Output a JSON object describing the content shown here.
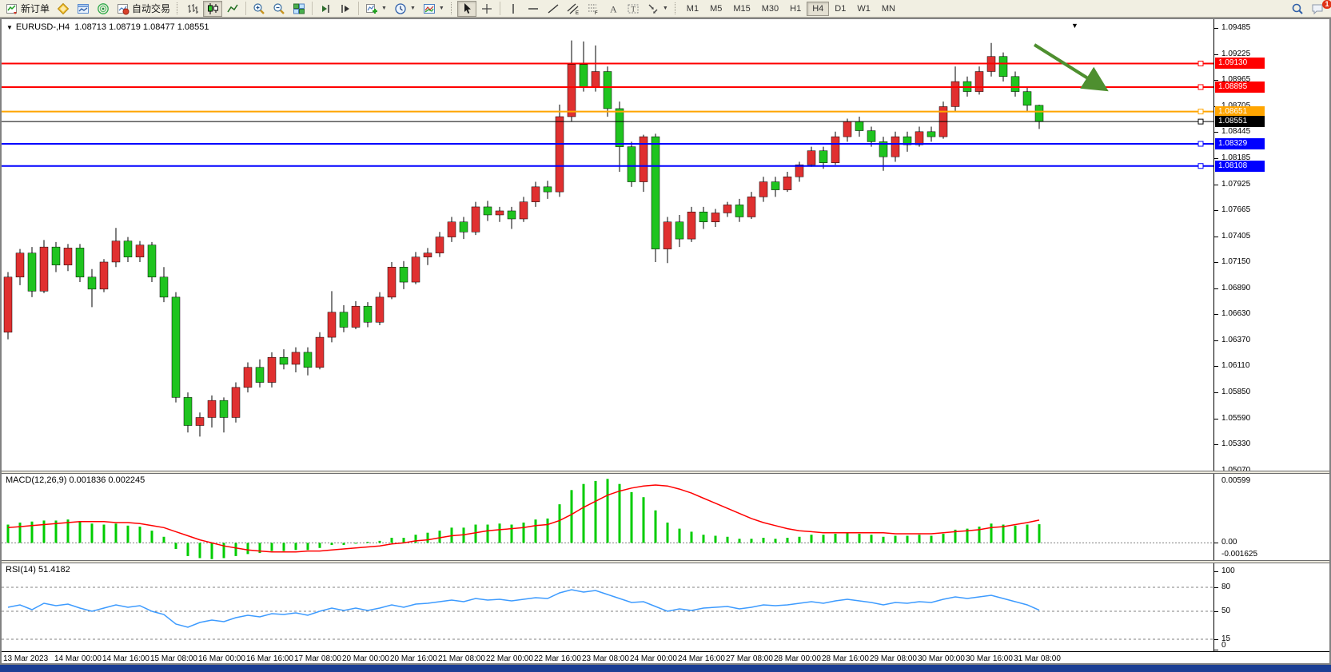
{
  "toolbar": {
    "new_order": "新订单",
    "autotrading": "自动交易",
    "timeframes": [
      "M1",
      "M5",
      "M15",
      "M30",
      "H1",
      "H4",
      "D1",
      "W1",
      "MN"
    ],
    "active_timeframe": "H4",
    "notification_badge": "1"
  },
  "chart": {
    "title": "EURUSD-,H4",
    "ohlc": "1.08713 1.08719 1.08477 1.08551",
    "macd_label": "MACD(12,26,9) 0.001836 0.002245",
    "rsi_label": "RSI(14) 51.4182",
    "shift_marker": "▼",
    "dropdown_glyph": "▼"
  },
  "chart_data": {
    "type": "candlestick",
    "symbol": "EURUSD-",
    "timeframe": "H4",
    "colors": {
      "up": "#e03030",
      "down": "#1fc41f",
      "wick": "#000000",
      "macd_hist": "#00cc00",
      "macd_signal": "#ff0000",
      "rsi": "#3d9bff",
      "arrow": "#4e8f2f"
    },
    "price_range": {
      "top": 1.09572,
      "bottom": 1.0507
    },
    "price_ticks": [
      "1.09485",
      "1.09225",
      "1.08965",
      "1.08705",
      "1.08445",
      "1.08185",
      "1.07925",
      "1.07665",
      "1.07405",
      "1.07150",
      "1.06890",
      "1.06630",
      "1.06370",
      "1.06110",
      "1.05850",
      "1.05590",
      "1.05330",
      "1.05070"
    ],
    "hlines": [
      {
        "price": 1.0913,
        "label": "1.09130",
        "color": "#ff0000",
        "w": 2
      },
      {
        "price": 1.08895,
        "label": "1.08895",
        "color": "#ff0000",
        "w": 2
      },
      {
        "price": 1.08651,
        "label": "1.08651",
        "color": "#ffa500",
        "w": 2
      },
      {
        "price": 1.08551,
        "label": "1.08551",
        "color": "#000000",
        "w": 1
      },
      {
        "price": 1.08329,
        "label": "1.08329",
        "color": "#0000ff",
        "w": 2
      },
      {
        "price": 1.08108,
        "label": "1.08108",
        "color": "#0000ff",
        "w": 2
      }
    ],
    "candles": [
      [
        1.0645,
        1.0705,
        1.0638,
        1.07
      ],
      [
        1.07,
        1.0728,
        1.0692,
        1.0724
      ],
      [
        1.0724,
        1.073,
        1.068,
        1.0686
      ],
      [
        1.0686,
        1.0737,
        1.0684,
        1.073
      ],
      [
        1.073,
        1.0735,
        1.0705,
        1.0712
      ],
      [
        1.0712,
        1.0733,
        1.0706,
        1.0729
      ],
      [
        1.0729,
        1.0733,
        1.0695,
        1.07
      ],
      [
        1.07,
        1.0708,
        1.067,
        1.0688
      ],
      [
        1.0688,
        1.0718,
        1.0685,
        1.0715
      ],
      [
        1.0715,
        1.0749,
        1.071,
        1.0736
      ],
      [
        1.0736,
        1.074,
        1.0715,
        1.072
      ],
      [
        1.072,
        1.0736,
        1.0715,
        1.0732
      ],
      [
        1.0732,
        1.0735,
        1.0695,
        1.07
      ],
      [
        1.07,
        1.071,
        1.0675,
        1.068
      ],
      [
        1.068,
        1.0685,
        1.0575,
        1.058
      ],
      [
        1.058,
        1.0585,
        1.0545,
        1.0552
      ],
      [
        1.0552,
        1.0565,
        1.0541,
        1.056
      ],
      [
        1.056,
        1.0582,
        1.055,
        1.0577
      ],
      [
        1.0577,
        1.058,
        1.0545,
        1.056
      ],
      [
        1.056,
        1.0595,
        1.0555,
        1.059
      ],
      [
        1.059,
        1.0615,
        1.0585,
        1.061
      ],
      [
        1.061,
        1.0618,
        1.059,
        1.0595
      ],
      [
        1.0595,
        1.0625,
        1.059,
        1.062
      ],
      [
        1.062,
        1.0628,
        1.0608,
        1.0613
      ],
      [
        1.0613,
        1.063,
        1.0605,
        1.0625
      ],
      [
        1.0625,
        1.063,
        1.0602,
        1.061
      ],
      [
        1.061,
        1.0645,
        1.0608,
        1.064
      ],
      [
        1.064,
        1.0686,
        1.0635,
        1.0665
      ],
      [
        1.0665,
        1.0672,
        1.0645,
        1.065
      ],
      [
        1.065,
        1.0676,
        1.0648,
        1.0671
      ],
      [
        1.0671,
        1.0675,
        1.065,
        1.0655
      ],
      [
        1.0655,
        1.0685,
        1.0652,
        1.068
      ],
      [
        1.068,
        1.0715,
        1.0678,
        1.071
      ],
      [
        1.071,
        1.0716,
        1.0688,
        1.0695
      ],
      [
        1.0695,
        1.0725,
        1.0693,
        1.072
      ],
      [
        1.072,
        1.0729,
        1.0712,
        1.0724
      ],
      [
        1.0724,
        1.0745,
        1.072,
        1.074
      ],
      [
        1.074,
        1.076,
        1.0735,
        1.0755
      ],
      [
        1.0755,
        1.076,
        1.0738,
        1.0745
      ],
      [
        1.0745,
        1.0775,
        1.0742,
        1.077
      ],
      [
        1.077,
        1.0776,
        1.0756,
        1.0762
      ],
      [
        1.0762,
        1.077,
        1.0755,
        1.0766
      ],
      [
        1.0766,
        1.077,
        1.0748,
        1.0758
      ],
      [
        1.0758,
        1.078,
        1.0755,
        1.0775
      ],
      [
        1.0775,
        1.0795,
        1.077,
        1.079
      ],
      [
        1.079,
        1.0796,
        1.0778,
        1.0785
      ],
      [
        1.0785,
        1.0872,
        1.078,
        1.086
      ],
      [
        1.086,
        1.0936,
        1.0855,
        1.0912
      ],
      [
        1.0912,
        1.0935,
        1.0885,
        1.089
      ],
      [
        1.089,
        1.0931,
        1.0885,
        1.0905
      ],
      [
        1.0905,
        1.091,
        1.086,
        1.0868
      ],
      [
        1.0868,
        1.0875,
        1.0805,
        1.083
      ],
      [
        1.083,
        1.0835,
        1.079,
        1.0795
      ],
      [
        1.0795,
        1.0842,
        1.0785,
        1.084
      ],
      [
        1.084,
        1.0843,
        1.0715,
        1.0728
      ],
      [
        1.0728,
        1.076,
        1.0714,
        1.0755
      ],
      [
        1.0755,
        1.0762,
        1.073,
        1.0738
      ],
      [
        1.0738,
        1.077,
        1.0735,
        1.0765
      ],
      [
        1.0765,
        1.077,
        1.0748,
        1.0755
      ],
      [
        1.0755,
        1.0768,
        1.075,
        1.0764
      ],
      [
        1.0764,
        1.0775,
        1.076,
        1.0772
      ],
      [
        1.0772,
        1.0778,
        1.0755,
        1.076
      ],
      [
        1.076,
        1.0785,
        1.0758,
        1.078
      ],
      [
        1.078,
        1.08,
        1.0775,
        1.0795
      ],
      [
        1.0795,
        1.08,
        1.078,
        1.0787
      ],
      [
        1.0787,
        1.0805,
        1.0785,
        1.08
      ],
      [
        1.08,
        1.0815,
        1.0795,
        1.0812
      ],
      [
        1.0812,
        1.083,
        1.081,
        1.0826
      ],
      [
        1.0826,
        1.083,
        1.0808,
        1.0814
      ],
      [
        1.0814,
        1.0845,
        1.0812,
        1.084
      ],
      [
        1.084,
        1.0858,
        1.0835,
        1.0855
      ],
      [
        1.0855,
        1.086,
        1.084,
        1.0846
      ],
      [
        1.0846,
        1.085,
        1.083,
        1.0835
      ],
      [
        1.0835,
        1.084,
        1.0806,
        1.082
      ],
      [
        1.082,
        1.0845,
        1.0815,
        1.084
      ],
      [
        1.084,
        1.0845,
        1.0825,
        1.0832
      ],
      [
        1.0832,
        1.085,
        1.083,
        1.0845
      ],
      [
        1.0845,
        1.085,
        1.0835,
        1.084
      ],
      [
        1.084,
        1.0875,
        1.0838,
        1.087
      ],
      [
        1.087,
        1.091,
        1.0865,
        1.0895
      ],
      [
        1.0895,
        1.09,
        1.088,
        1.0885
      ],
      [
        1.0885,
        1.091,
        1.0882,
        1.0905
      ],
      [
        1.0905,
        1.09335,
        1.09,
        1.092
      ],
      [
        1.092,
        1.0924,
        1.0895,
        1.09
      ],
      [
        1.09,
        1.0905,
        1.088,
        1.0885
      ],
      [
        1.0885,
        1.089,
        1.0865,
        1.08713
      ],
      [
        1.08713,
        1.08719,
        1.08477,
        1.08551
      ]
    ],
    "time_labels": [
      {
        "text": "13 Mar 2023",
        "candle": 0
      },
      {
        "text": "14 Mar 00:00",
        "candle": 6
      },
      {
        "text": "14 Mar 16:00",
        "candle": 10
      },
      {
        "text": "15 Mar 08:00",
        "candle": 14
      },
      {
        "text": "16 Mar 00:00",
        "candle": 18
      },
      {
        "text": "16 Mar 16:00",
        "candle": 22
      },
      {
        "text": "17 Mar 08:00",
        "candle": 26
      },
      {
        "text": "20 Mar 00:00",
        "candle": 30
      },
      {
        "text": "20 Mar 16:00",
        "candle": 34
      },
      {
        "text": "21 Mar 08:00",
        "candle": 38
      },
      {
        "text": "22 Mar 00:00",
        "candle": 42
      },
      {
        "text": "22 Mar 16:00",
        "candle": 46
      },
      {
        "text": "23 Mar 08:00",
        "candle": 50
      },
      {
        "text": "24 Mar 00:00",
        "candle": 54
      },
      {
        "text": "24 Mar 16:00",
        "candle": 58
      },
      {
        "text": "27 Mar 08:00",
        "candle": 62
      },
      {
        "text": "28 Mar 00:00",
        "candle": 66
      },
      {
        "text": "28 Mar 16:00",
        "candle": 70
      },
      {
        "text": "29 Mar 08:00",
        "candle": 74
      },
      {
        "text": "30 Mar 00:00",
        "candle": 78
      },
      {
        "text": "30 Mar 16:00",
        "candle": 82
      },
      {
        "text": "31 Mar 08:00",
        "candle": 86
      }
    ],
    "macd": {
      "params": "12,26,9",
      "value_main": "0.001836",
      "value_signal": "0.002245",
      "range": {
        "top": 0.0068,
        "bottom": -0.0017
      },
      "axis_labels": [
        "0.00599",
        "0.00",
        "-0.001625"
      ],
      "hist": [
        0.0018,
        0.002,
        0.0021,
        0.0022,
        0.0022,
        0.0023,
        0.0021,
        0.0019,
        0.0018,
        0.0019,
        0.0017,
        0.0016,
        0.0012,
        0.0006,
        -0.0006,
        -0.0013,
        -0.0015,
        -0.0016,
        -0.0015,
        -0.0013,
        -0.0011,
        -0.001,
        -0.0008,
        -0.0008,
        -0.0007,
        -0.0007,
        -0.0005,
        -0.0002,
        -0.0002,
        0.0,
        0.0001,
        0.0002,
        0.0005,
        0.0005,
        0.0008,
        0.001,
        0.0012,
        0.0015,
        0.0015,
        0.0018,
        0.0018,
        0.0019,
        0.0018,
        0.002,
        0.0023,
        0.0024,
        0.0038,
        0.0052,
        0.0058,
        0.0061,
        0.0063,
        0.0058,
        0.005,
        0.0045,
        0.0032,
        0.002,
        0.0014,
        0.0011,
        0.0008,
        0.0007,
        0.0006,
        0.0004,
        0.0004,
        0.0005,
        0.0004,
        0.0005,
        0.0006,
        0.0008,
        0.0008,
        0.0009,
        0.001,
        0.0009,
        0.0008,
        0.0006,
        0.0007,
        0.0007,
        0.0008,
        0.0007,
        0.0009,
        0.0013,
        0.0014,
        0.0016,
        0.0019,
        0.0018,
        0.0017,
        0.0018,
        0.001836
      ],
      "signal": [
        0.0015,
        0.0016,
        0.0017,
        0.0018,
        0.0019,
        0.002,
        0.0021,
        0.0021,
        0.0021,
        0.002,
        0.002,
        0.0019,
        0.0017,
        0.0015,
        0.0011,
        0.0007,
        0.0003,
        0.0,
        -0.0003,
        -0.0005,
        -0.0007,
        -0.0008,
        -0.0009,
        -0.0009,
        -0.0009,
        -0.0008,
        -0.0008,
        -0.0007,
        -0.0006,
        -0.0005,
        -0.0004,
        -0.0003,
        -0.0001,
        0.0,
        0.0002,
        0.0003,
        0.0005,
        0.0007,
        0.0008,
        0.001,
        0.0012,
        0.0013,
        0.0014,
        0.0015,
        0.0017,
        0.0018,
        0.0022,
        0.0028,
        0.0035,
        0.0041,
        0.0047,
        0.0051,
        0.0054,
        0.0056,
        0.0057,
        0.0056,
        0.0053,
        0.0049,
        0.0044,
        0.0039,
        0.0034,
        0.0029,
        0.0024,
        0.002,
        0.0017,
        0.0014,
        0.0012,
        0.0011,
        0.001,
        0.001,
        0.001,
        0.001,
        0.001,
        0.001,
        0.0009,
        0.0009,
        0.0009,
        0.0009,
        0.001,
        0.0011,
        0.0012,
        0.0013,
        0.0015,
        0.0016,
        0.0018,
        0.002,
        0.002245
      ]
    },
    "rsi": {
      "period": "14",
      "value": "51.4182",
      "levels": [
        80,
        50,
        15
      ],
      "axis_labels": [
        "100",
        "80",
        "50",
        "15",
        "0"
      ],
      "values": [
        55,
        58,
        52,
        60,
        57,
        59,
        54,
        50,
        54,
        58,
        55,
        57,
        50,
        46,
        34,
        30,
        36,
        39,
        37,
        42,
        45,
        43,
        47,
        46,
        48,
        45,
        50,
        54,
        51,
        54,
        51,
        54,
        58,
        55,
        59,
        60,
        62,
        64,
        62,
        66,
        64,
        65,
        63,
        65,
        67,
        66,
        73,
        77,
        74,
        76,
        71,
        66,
        61,
        62,
        56,
        50,
        53,
        51,
        54,
        55,
        56,
        53,
        55,
        58,
        57,
        58,
        60,
        62,
        60,
        63,
        65,
        63,
        61,
        58,
        61,
        60,
        62,
        61,
        65,
        68,
        66,
        68,
        70,
        66,
        62,
        58,
        51.4
      ]
    }
  }
}
